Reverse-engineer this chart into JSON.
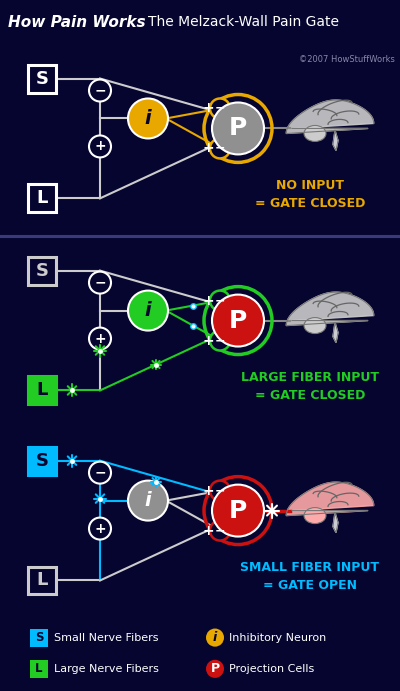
{
  "title_bold": "How Pain Works",
  "title_regular": "The Melzack-Wall Pain Gate",
  "copyright": "©2007 HowStuffWorks",
  "bg_dark": "#050530",
  "bg_header": "#5a5a8a",
  "bg_legend": "#1a1a4a",
  "white": "#ffffff",
  "yellow": "#e8a800",
  "green": "#22cc22",
  "cyan": "#00bbff",
  "gray_neuron": "#909090",
  "red_neuron": "#cc1111",
  "panels": [
    {
      "label": "NO INPUT\n= GATE CLOSED",
      "label_color": "#e8a800",
      "S_color": "#ffffff",
      "S_fill": "#050530",
      "L_color": "#ffffff",
      "L_fill": "#050530",
      "inhibitory_color": "#e8a800",
      "inhibitory_text": "#050530",
      "projection_color": "#909090",
      "projection_border": "#e8a800",
      "line_color_S": "#cccccc",
      "line_color_L": "#cccccc",
      "line_color_inh": "#e8a800",
      "spark_S": false,
      "spark_L": false,
      "spark_P": false,
      "brain_tint": "#cccccc",
      "active_line": false
    },
    {
      "label": "LARGE FIBER INPUT\n= GATE CLOSED",
      "label_color": "#22cc22",
      "S_color": "#cccccc",
      "S_fill": "#050530",
      "L_color": "#22cc22",
      "L_fill": "#22cc22",
      "inhibitory_color": "#22cc22",
      "inhibitory_text": "#050530",
      "projection_color": "#cc1111",
      "projection_border": "#22cc22",
      "line_color_S": "#cccccc",
      "line_color_L": "#22cc22",
      "line_color_inh": "#22cc22",
      "spark_S": false,
      "spark_L": true,
      "spark_P": false,
      "brain_tint": "#cccccc",
      "active_line": false
    },
    {
      "label": "SMALL FIBER INPUT\n= GATE OPEN",
      "label_color": "#00bbff",
      "S_color": "#00bbff",
      "S_fill": "#00bbff",
      "L_color": "#cccccc",
      "L_fill": "#050530",
      "inhibitory_color": "#909090",
      "inhibitory_text": "#ffffff",
      "projection_color": "#cc1111",
      "projection_border": "#cc1111",
      "line_color_S": "#00bbff",
      "line_color_L": "#cccccc",
      "line_color_inh": "#cccccc",
      "spark_S": true,
      "spark_L": false,
      "spark_P": true,
      "brain_tint": "#ffaaaa",
      "active_line": true
    }
  ]
}
